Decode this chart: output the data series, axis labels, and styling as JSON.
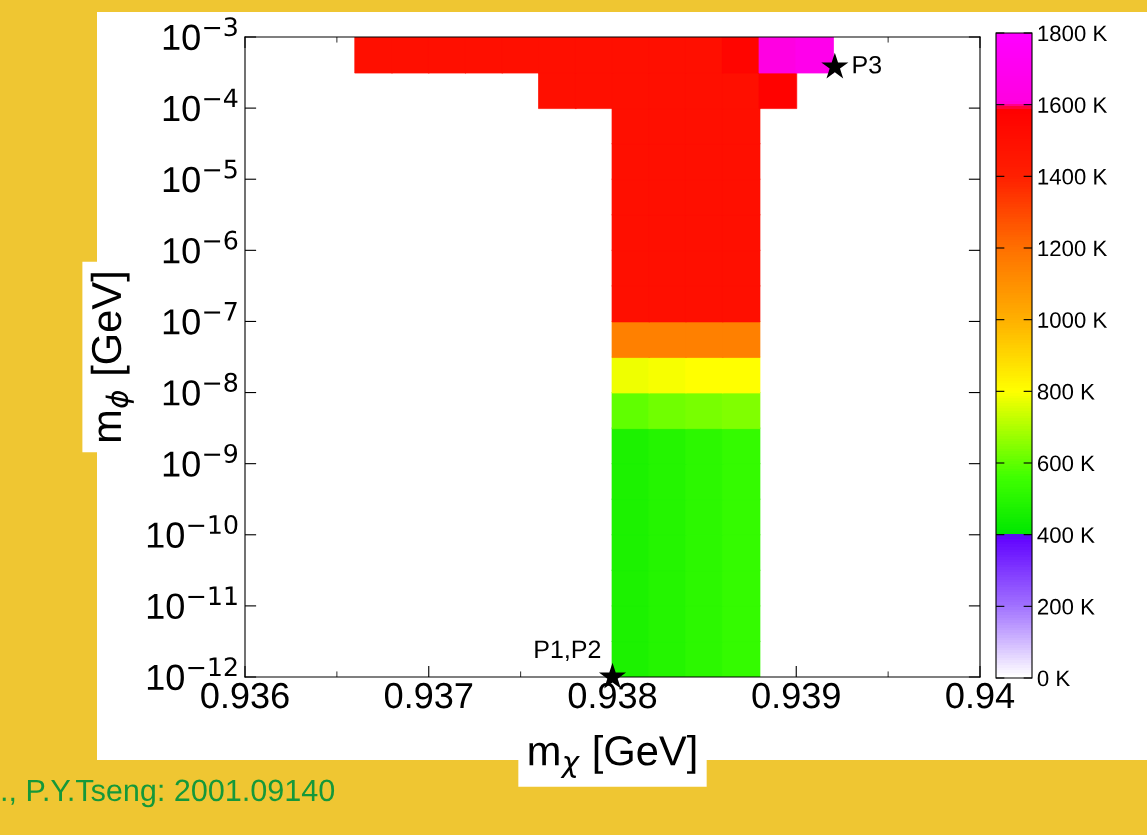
{
  "chart_data": {
    "type": "scatter",
    "xlabel": "m$_{χ}$ [GeV]",
    "ylabel": "m$_{ϕ}$ [GeV]",
    "xlim": [
      0.936,
      0.94
    ],
    "xticks": [
      0.936,
      0.937,
      0.938,
      0.939,
      0.94
    ],
    "ylim": [
      1e-12,
      0.001
    ],
    "yticks": [
      {
        "value": 1e-12,
        "label": "10$^{−12}$"
      },
      {
        "value": 1e-11,
        "label": "10$^{−11}$"
      },
      {
        "value": 1e-10,
        "label": "10$^{−10}$"
      },
      {
        "value": 1e-09,
        "label": "10$^{−9}$"
      },
      {
        "value": 1e-08,
        "label": "10$^{−8}$"
      },
      {
        "value": 1e-07,
        "label": "10$^{−7}$"
      },
      {
        "value": 1e-06,
        "label": "10$^{−6}$"
      },
      {
        "value": 1e-05,
        "label": "10$^{−5}$"
      },
      {
        "value": 0.0001,
        "label": "10$^{−4}$"
      },
      {
        "value": 0.001,
        "label": "10$^{−3}$"
      }
    ],
    "log": "y",
    "grid": false,
    "clim": [
      0,
      1800
    ],
    "cticks": [
      {
        "value": 0,
        "label": "0 K"
      },
      {
        "value": 200,
        "label": "200 K"
      },
      {
        "value": 400,
        "label": "400 K"
      },
      {
        "value": 600,
        "label": "600 K"
      },
      {
        "value": 800,
        "label": "800 K"
      },
      {
        "value": 1000,
        "label": "1000 K"
      },
      {
        "value": 1200,
        "label": "1200 K"
      },
      {
        "value": 1400,
        "label": "1400 K"
      },
      {
        "value": 1600,
        "label": "1600 K"
      },
      {
        "value": 1800,
        "label": "1800 K"
      }
    ],
    "series": [
      {
        "type": "scatter",
        "marker": "square",
        "colors": [
          "#1cf200",
          "#24f500",
          "#2cf800",
          "#34fb00",
          "#1cf200",
          "#24f500",
          "#2cf800",
          "#34fb00",
          "#1cf200",
          "#24f500",
          "#2cf800",
          "#34fb00",
          "#1cf200",
          "#24f500",
          "#2cf800",
          "#34fb00",
          "#1cf200",
          "#24f500",
          "#2cf800",
          "#34fb00",
          "#1cf200",
          "#24f500",
          "#2cf800",
          "#34fb00",
          "#1cf200",
          "#24f500",
          "#2cf800",
          "#34fb00",
          "#60ff00",
          "#70ff00",
          "#78ff00",
          "#80ff00",
          "#efff00",
          "#f7ff00",
          "#ffff00",
          "#ffff00",
          "#ff8000",
          "#ff8000",
          "#ff8000",
          "#ff8000",
          "#ff0f00",
          "#ff0f00",
          "#ff0f00",
          "#ff0f00",
          "#ff0f00",
          "#ff0f00",
          "#ff0f00",
          "#ff0f00",
          "#ff0f00",
          "#ff0f00",
          "#ff0f00",
          "#ff0f00",
          "#ff0f00",
          "#ff0f00",
          "#ff0f00",
          "#ff0f00",
          "#ff0f00",
          "#ff0f00",
          "#ff0f00",
          "#ff0f00",
          "#ff0f00",
          "#ff0f00",
          "#ff0f00",
          "#ff0f00",
          "#ff0f00",
          "#ff0f00",
          "#ff0f00",
          "#ff0f00",
          "#ff0f00",
          "#ff0f00",
          "#ff0200",
          "#ff0f00",
          "#ff0f00",
          "#ff0f00",
          "#ff0f00",
          "#ff0f00",
          "#ff0f00",
          "#ff0f00",
          "#ff0f00",
          "#ff0f00",
          "#ff0f00",
          "#ff0500",
          "#ff00e2",
          "#ff00eb"
        ],
        "x": [
          0.9381,
          0.9383,
          0.9385,
          0.9387,
          0.9381,
          0.9383,
          0.9385,
          0.9387,
          0.9381,
          0.9383,
          0.9385,
          0.9387,
          0.9381,
          0.9383,
          0.9385,
          0.9387,
          0.9381,
          0.9383,
          0.9385,
          0.9387,
          0.9381,
          0.9383,
          0.9385,
          0.9387,
          0.9381,
          0.9383,
          0.9385,
          0.9387,
          0.9381,
          0.9383,
          0.9385,
          0.9387,
          0.9381,
          0.9383,
          0.9385,
          0.9387,
          0.9381,
          0.9383,
          0.9385,
          0.9387,
          0.9381,
          0.9383,
          0.9385,
          0.9387,
          0.9381,
          0.9383,
          0.9385,
          0.9387,
          0.9381,
          0.9383,
          0.9385,
          0.9387,
          0.9381,
          0.9383,
          0.9385,
          0.9387,
          0.9381,
          0.9383,
          0.9385,
          0.9387,
          0.9381,
          0.9383,
          0.9385,
          0.9387,
          0.9377,
          0.9379,
          0.9381,
          0.9383,
          0.9385,
          0.9387,
          0.9389,
          0.9367,
          0.9369,
          0.9371,
          0.9373,
          0.9375,
          0.9377,
          0.9379,
          0.9381,
          0.9383,
          0.9385,
          0.9387,
          0.9389,
          0.9391
        ],
        "values": [
          1.78e-12,
          1.78e-12,
          1.78e-12,
          1.78e-12,
          5.62e-12,
          5.62e-12,
          5.62e-12,
          5.62e-12,
          1.78e-11,
          1.78e-11,
          1.78e-11,
          1.78e-11,
          5.62e-11,
          5.62e-11,
          5.62e-11,
          5.62e-11,
          1.78e-10,
          1.78e-10,
          1.78e-10,
          1.78e-10,
          5.62e-10,
          5.62e-10,
          5.62e-10,
          5.62e-10,
          1.78e-09,
          1.78e-09,
          1.78e-09,
          1.78e-09,
          5.62e-09,
          5.62e-09,
          5.62e-09,
          5.62e-09,
          1.78e-08,
          1.78e-08,
          1.78e-08,
          1.78e-08,
          5.62e-08,
          5.62e-08,
          5.62e-08,
          5.62e-08,
          1.78e-07,
          1.78e-07,
          1.78e-07,
          1.78e-07,
          5.62e-07,
          5.62e-07,
          5.62e-07,
          5.62e-07,
          1.78e-06,
          1.78e-06,
          1.78e-06,
          1.78e-06,
          5.62e-06,
          5.62e-06,
          5.62e-06,
          5.62e-06,
          1.78e-05,
          1.78e-05,
          1.78e-05,
          1.78e-05,
          5.62e-05,
          5.62e-05,
          5.62e-05,
          5.62e-05,
          0.000178,
          0.000178,
          0.000178,
          0.000178,
          0.000178,
          0.000178,
          0.000178,
          0.000562,
          0.000562,
          0.000562,
          0.000562,
          0.000562,
          0.000562,
          0.000562,
          0.000562,
          0.000562,
          0.000562,
          0.000562,
          0.000562,
          0.000562
        ],
        "cvalues": [
          470,
          490,
          510,
          530,
          470,
          490,
          510,
          530,
          470,
          490,
          510,
          530,
          470,
          490,
          510,
          530,
          470,
          490,
          510,
          530,
          470,
          490,
          510,
          530,
          470,
          490,
          510,
          530,
          600,
          620,
          630,
          640,
          780,
          790,
          800,
          800,
          1150,
          1150,
          1150,
          1150,
          1500,
          1500,
          1500,
          1500,
          1500,
          1500,
          1500,
          1500,
          1500,
          1500,
          1500,
          1500,
          1500,
          1500,
          1500,
          1500,
          1500,
          1500,
          1500,
          1500,
          1500,
          1500,
          1500,
          1500,
          1500,
          1500,
          1500,
          1500,
          1500,
          1500,
          1580,
          1500,
          1500,
          1500,
          1500,
          1500,
          1500,
          1500,
          1500,
          1500,
          1500,
          1560,
          1620,
          1680
        ]
      },
      {
        "type": "scatter",
        "marker": "star",
        "color": "#000000",
        "x": [
          0.938,
          0.93921
        ],
        "values": [
          1e-12,
          0.00038
        ]
      }
    ],
    "annotations": [
      {
        "text": "P1,P2",
        "x": 0.938,
        "y": 1e-12
      },
      {
        "text": "P3",
        "x": 0.93921,
        "y": 0.00038
      },
      "., P.Y.Tseng: 2001.09140"
    ]
  }
}
